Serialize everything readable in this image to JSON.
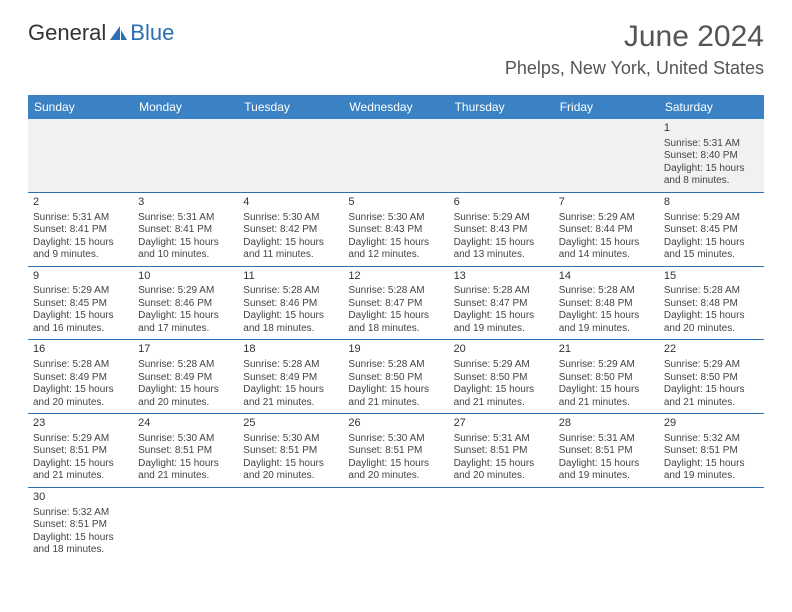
{
  "logo": {
    "text1": "General",
    "text2": "Blue"
  },
  "title": "June 2024",
  "location": "Phelps, New York, United States",
  "colors": {
    "header_bg": "#3b82c4",
    "row_border": "#2b6fb3",
    "text": "#444444",
    "title_color": "#555555"
  },
  "day_headers": [
    "Sunday",
    "Monday",
    "Tuesday",
    "Wednesday",
    "Thursday",
    "Friday",
    "Saturday"
  ],
  "weeks": [
    [
      null,
      null,
      null,
      null,
      null,
      null,
      {
        "d": "1",
        "sr": "Sunrise: 5:31 AM",
        "ss": "Sunset: 8:40 PM",
        "dl1": "Daylight: 15 hours",
        "dl2": "and 8 minutes."
      }
    ],
    [
      {
        "d": "2",
        "sr": "Sunrise: 5:31 AM",
        "ss": "Sunset: 8:41 PM",
        "dl1": "Daylight: 15 hours",
        "dl2": "and 9 minutes."
      },
      {
        "d": "3",
        "sr": "Sunrise: 5:31 AM",
        "ss": "Sunset: 8:41 PM",
        "dl1": "Daylight: 15 hours",
        "dl2": "and 10 minutes."
      },
      {
        "d": "4",
        "sr": "Sunrise: 5:30 AM",
        "ss": "Sunset: 8:42 PM",
        "dl1": "Daylight: 15 hours",
        "dl2": "and 11 minutes."
      },
      {
        "d": "5",
        "sr": "Sunrise: 5:30 AM",
        "ss": "Sunset: 8:43 PM",
        "dl1": "Daylight: 15 hours",
        "dl2": "and 12 minutes."
      },
      {
        "d": "6",
        "sr": "Sunrise: 5:29 AM",
        "ss": "Sunset: 8:43 PM",
        "dl1": "Daylight: 15 hours",
        "dl2": "and 13 minutes."
      },
      {
        "d": "7",
        "sr": "Sunrise: 5:29 AM",
        "ss": "Sunset: 8:44 PM",
        "dl1": "Daylight: 15 hours",
        "dl2": "and 14 minutes."
      },
      {
        "d": "8",
        "sr": "Sunrise: 5:29 AM",
        "ss": "Sunset: 8:45 PM",
        "dl1": "Daylight: 15 hours",
        "dl2": "and 15 minutes."
      }
    ],
    [
      {
        "d": "9",
        "sr": "Sunrise: 5:29 AM",
        "ss": "Sunset: 8:45 PM",
        "dl1": "Daylight: 15 hours",
        "dl2": "and 16 minutes."
      },
      {
        "d": "10",
        "sr": "Sunrise: 5:29 AM",
        "ss": "Sunset: 8:46 PM",
        "dl1": "Daylight: 15 hours",
        "dl2": "and 17 minutes."
      },
      {
        "d": "11",
        "sr": "Sunrise: 5:28 AM",
        "ss": "Sunset: 8:46 PM",
        "dl1": "Daylight: 15 hours",
        "dl2": "and 18 minutes."
      },
      {
        "d": "12",
        "sr": "Sunrise: 5:28 AM",
        "ss": "Sunset: 8:47 PM",
        "dl1": "Daylight: 15 hours",
        "dl2": "and 18 minutes."
      },
      {
        "d": "13",
        "sr": "Sunrise: 5:28 AM",
        "ss": "Sunset: 8:47 PM",
        "dl1": "Daylight: 15 hours",
        "dl2": "and 19 minutes."
      },
      {
        "d": "14",
        "sr": "Sunrise: 5:28 AM",
        "ss": "Sunset: 8:48 PM",
        "dl1": "Daylight: 15 hours",
        "dl2": "and 19 minutes."
      },
      {
        "d": "15",
        "sr": "Sunrise: 5:28 AM",
        "ss": "Sunset: 8:48 PM",
        "dl1": "Daylight: 15 hours",
        "dl2": "and 20 minutes."
      }
    ],
    [
      {
        "d": "16",
        "sr": "Sunrise: 5:28 AM",
        "ss": "Sunset: 8:49 PM",
        "dl1": "Daylight: 15 hours",
        "dl2": "and 20 minutes."
      },
      {
        "d": "17",
        "sr": "Sunrise: 5:28 AM",
        "ss": "Sunset: 8:49 PM",
        "dl1": "Daylight: 15 hours",
        "dl2": "and 20 minutes."
      },
      {
        "d": "18",
        "sr": "Sunrise: 5:28 AM",
        "ss": "Sunset: 8:49 PM",
        "dl1": "Daylight: 15 hours",
        "dl2": "and 21 minutes."
      },
      {
        "d": "19",
        "sr": "Sunrise: 5:28 AM",
        "ss": "Sunset: 8:50 PM",
        "dl1": "Daylight: 15 hours",
        "dl2": "and 21 minutes."
      },
      {
        "d": "20",
        "sr": "Sunrise: 5:29 AM",
        "ss": "Sunset: 8:50 PM",
        "dl1": "Daylight: 15 hours",
        "dl2": "and 21 minutes."
      },
      {
        "d": "21",
        "sr": "Sunrise: 5:29 AM",
        "ss": "Sunset: 8:50 PM",
        "dl1": "Daylight: 15 hours",
        "dl2": "and 21 minutes."
      },
      {
        "d": "22",
        "sr": "Sunrise: 5:29 AM",
        "ss": "Sunset: 8:50 PM",
        "dl1": "Daylight: 15 hours",
        "dl2": "and 21 minutes."
      }
    ],
    [
      {
        "d": "23",
        "sr": "Sunrise: 5:29 AM",
        "ss": "Sunset: 8:51 PM",
        "dl1": "Daylight: 15 hours",
        "dl2": "and 21 minutes."
      },
      {
        "d": "24",
        "sr": "Sunrise: 5:30 AM",
        "ss": "Sunset: 8:51 PM",
        "dl1": "Daylight: 15 hours",
        "dl2": "and 21 minutes."
      },
      {
        "d": "25",
        "sr": "Sunrise: 5:30 AM",
        "ss": "Sunset: 8:51 PM",
        "dl1": "Daylight: 15 hours",
        "dl2": "and 20 minutes."
      },
      {
        "d": "26",
        "sr": "Sunrise: 5:30 AM",
        "ss": "Sunset: 8:51 PM",
        "dl1": "Daylight: 15 hours",
        "dl2": "and 20 minutes."
      },
      {
        "d": "27",
        "sr": "Sunrise: 5:31 AM",
        "ss": "Sunset: 8:51 PM",
        "dl1": "Daylight: 15 hours",
        "dl2": "and 20 minutes."
      },
      {
        "d": "28",
        "sr": "Sunrise: 5:31 AM",
        "ss": "Sunset: 8:51 PM",
        "dl1": "Daylight: 15 hours",
        "dl2": "and 19 minutes."
      },
      {
        "d": "29",
        "sr": "Sunrise: 5:32 AM",
        "ss": "Sunset: 8:51 PM",
        "dl1": "Daylight: 15 hours",
        "dl2": "and 19 minutes."
      }
    ],
    [
      {
        "d": "30",
        "sr": "Sunrise: 5:32 AM",
        "ss": "Sunset: 8:51 PM",
        "dl1": "Daylight: 15 hours",
        "dl2": "and 18 minutes."
      },
      null,
      null,
      null,
      null,
      null,
      null
    ]
  ]
}
